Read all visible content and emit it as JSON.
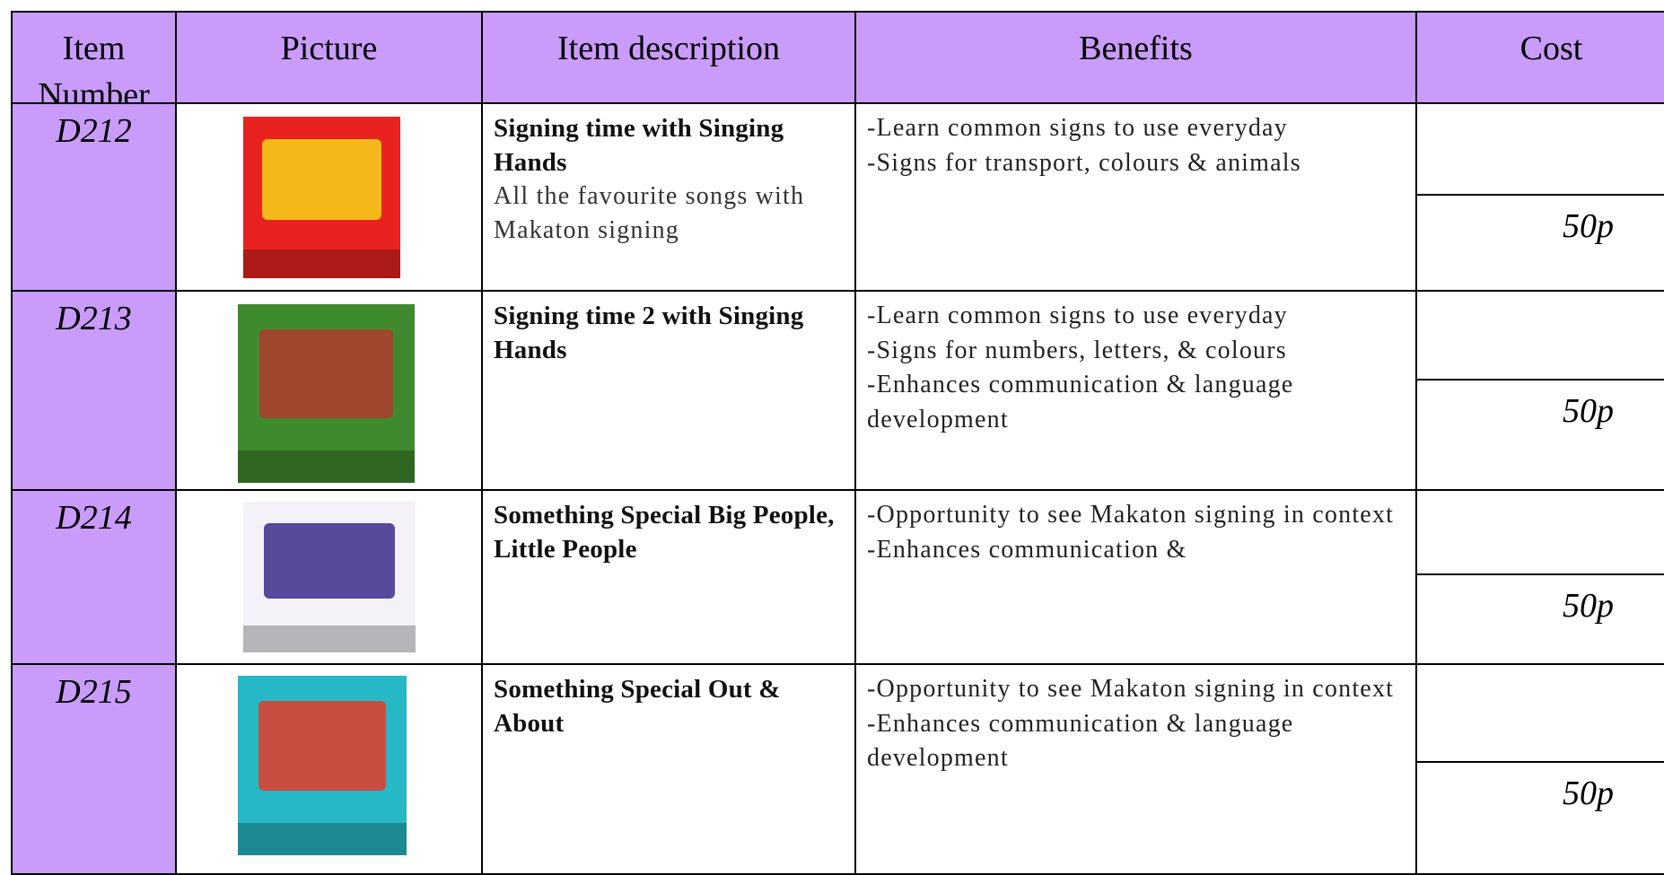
{
  "table": {
    "header": [
      "Item Number",
      "Picture",
      "Item description",
      "Benefits",
      "Cost"
    ],
    "rows": [
      {
        "item_number": "D212",
        "title": "Signing time with Singing Hands",
        "description": "All the favourite songs with Makaton signing",
        "benefits": [
          "-Learn common signs to use everyday",
          "-Signs for transport, colours & animals"
        ],
        "cost": "50p"
      },
      {
        "item_number": "D213",
        "title": "Signing time 2 with Singing Hands",
        "description": null,
        "benefits": [
          "-Learn common signs to use everyday",
          "-Signs for numbers, letters, & colours",
          "-Enhances communication & language development"
        ],
        "cost": "50p"
      },
      {
        "item_number": "D214",
        "title": "Something Special Big People, Little People",
        "description": null,
        "benefits": [
          "-Opportunity to see Makaton signing in context",
          "-Enhances communication &"
        ],
        "cost": "50p"
      },
      {
        "item_number": "D215",
        "title": "Something Special Out & About",
        "description": null,
        "benefits": [
          "-Opportunity to see Makaton signing in context",
          "-Enhances communication & language development"
        ],
        "cost": "50p"
      }
    ]
  }
}
